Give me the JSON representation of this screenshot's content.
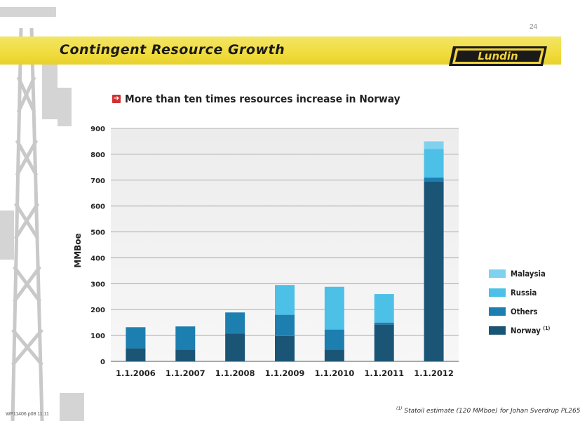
{
  "page_number": "24",
  "slide_title": "Contingent Resource Growth",
  "logo_text": "Lundin",
  "bullet_text": "More than ten times resources increase in Norway",
  "footnote": {
    "marker": "(1)",
    "text": "Statoil estimate (120 MMboe) for Johan Sverdrup PL265"
  },
  "doc_code": "WF11406 p08 11.11",
  "colors": {
    "title_band": "#f0dc3c",
    "norway": "#1a5575",
    "others": "#1d7fb0",
    "russia": "#4cc0e6",
    "malaysia": "#7fd2ee",
    "bullet_icon": "#d32f2f"
  },
  "chart_data": {
    "type": "bar",
    "stacked": true,
    "categories": [
      "1.1.2006",
      "1.1.2007",
      "1.1.2008",
      "1.1.2009",
      "1.1.2010",
      "1.1.2011",
      "1.1.2012"
    ],
    "series": [
      {
        "name": "Norway",
        "marker": "(1)",
        "values": [
          50,
          45,
          107,
          98,
          45,
          142,
          695
        ]
      },
      {
        "name": "Others",
        "values": [
          82,
          90,
          82,
          82,
          78,
          8,
          15
        ]
      },
      {
        "name": "Russia",
        "values": [
          0,
          0,
          0,
          115,
          165,
          110,
          110
        ]
      },
      {
        "name": "Malaysia",
        "values": [
          0,
          0,
          0,
          0,
          0,
          0,
          30
        ]
      }
    ],
    "ylabel": "MMBoe",
    "xlabel": "",
    "ylim": [
      0,
      900
    ],
    "yticks": [
      0,
      100,
      200,
      300,
      400,
      500,
      600,
      700,
      800,
      900
    ],
    "grid": true,
    "legend_position": "right"
  }
}
